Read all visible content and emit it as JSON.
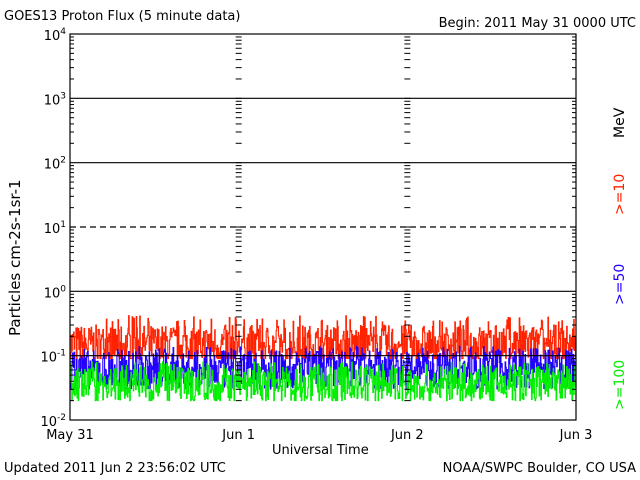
{
  "header": {
    "title": "GOES13 Proton Flux (5 minute data)",
    "begin": "Begin: 2011 May 31 0000 UTC"
  },
  "footer": {
    "updated": "Updated 2011 Jun  2 23:56:02 UTC",
    "credit": "NOAA/SWPC Boulder, CO USA"
  },
  "legend": {
    "unit": "MeV",
    "items": [
      {
        "label": ">=10",
        "color": "#ff2200"
      },
      {
        "label": ">=50",
        "color": "#2200ff"
      },
      {
        "label": ">=100",
        "color": "#00ee00"
      }
    ]
  },
  "chart_data": {
    "type": "line",
    "yscale": "log",
    "ylim": [
      0.01,
      10000
    ],
    "ylabel": "Particles cm-2s-1sr-1",
    "xlabel": "Universal Time",
    "x_ticks": [
      "May 31",
      "Jun 1",
      "Jun 2",
      "Jun 3"
    ],
    "y_ticks": [
      "10-2",
      "10-1",
      "100",
      "101",
      "102",
      "103",
      "104"
    ],
    "grid": "horizontal at each decade; dashed at 10^1",
    "series": [
      {
        "name": ">=10",
        "color": "#ff2200",
        "typical": 0.15,
        "min": 0.09,
        "max": 0.42
      },
      {
        "name": ">=50",
        "color": "#2200ff",
        "typical": 0.06,
        "min": 0.03,
        "max": 0.14
      },
      {
        "name": ">=100",
        "color": "#00ee00",
        "typical": 0.035,
        "min": 0.02,
        "max": 0.08
      }
    ]
  }
}
